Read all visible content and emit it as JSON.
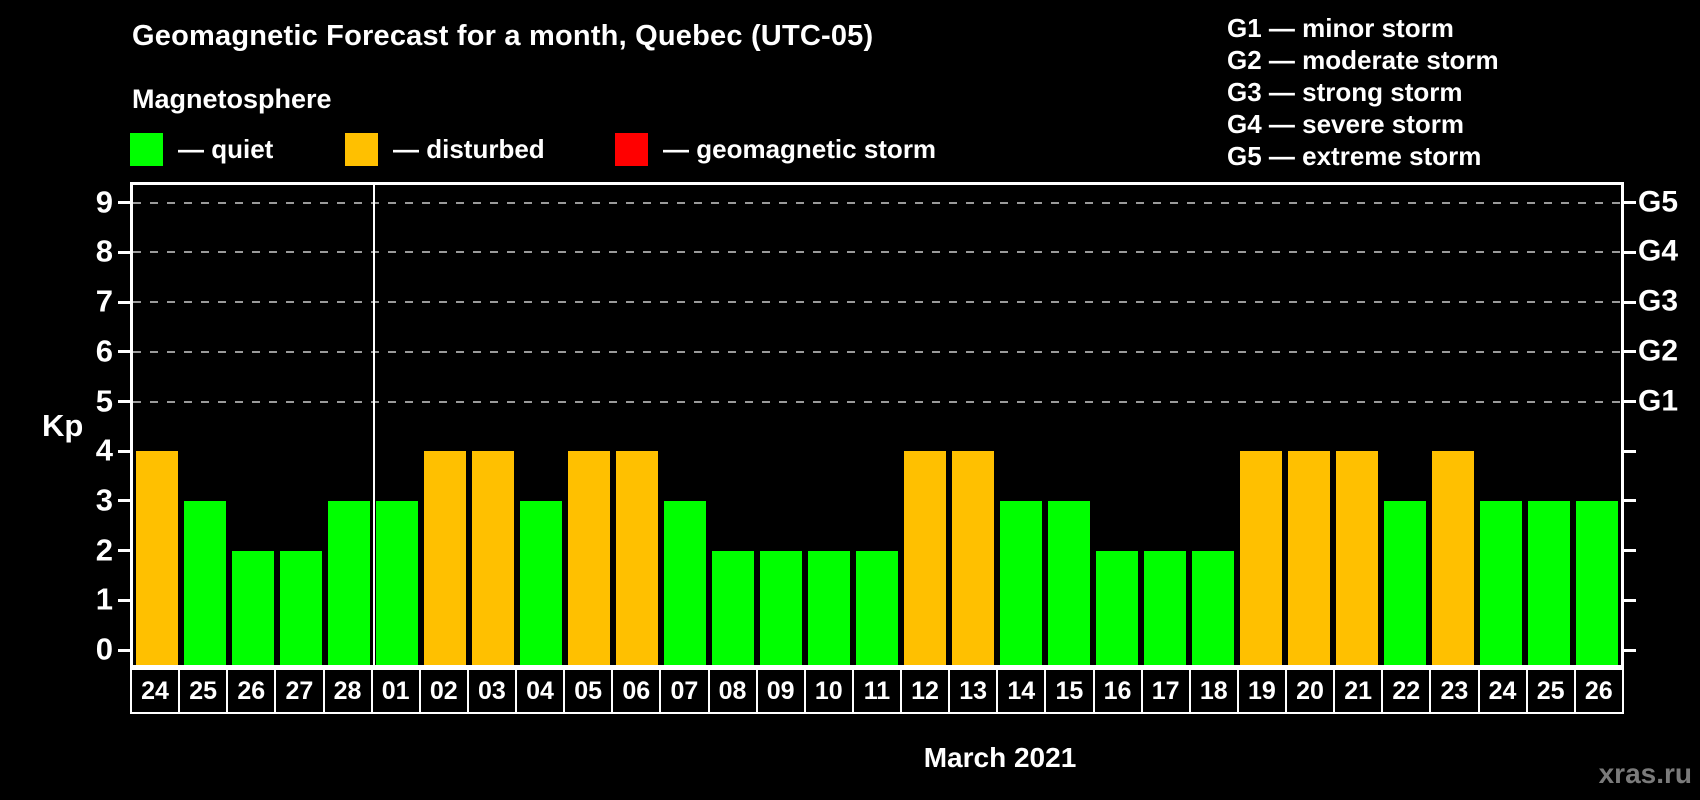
{
  "title": "Geomagnetic Forecast for a month, Quebec (UTC-05)",
  "subtitle": "Magnetosphere",
  "legend": {
    "items": [
      {
        "id": "quiet",
        "label": "— quiet",
        "color": "#00ff00"
      },
      {
        "id": "disturbed",
        "label": "— disturbed",
        "color": "#ffc000"
      },
      {
        "id": "storm",
        "label": "— geomagnetic storm",
        "color": "#ff0000"
      }
    ]
  },
  "g_scale_legend": [
    "G1 — minor storm",
    "G2 — moderate storm",
    "G3 — strong storm",
    "G4 — severe storm",
    "G5 — extreme storm"
  ],
  "y_axis": {
    "label": "Kp",
    "ticks": [
      0,
      1,
      2,
      3,
      4,
      5,
      6,
      7,
      8,
      9
    ]
  },
  "x_axis": {
    "label": "March 2021"
  },
  "watermark": "xras.ru",
  "chart_data": {
    "type": "bar",
    "title": "Geomagnetic Forecast for a month, Quebec (UTC-05)",
    "subtitle": "Magnetosphere",
    "categories": [
      "24",
      "25",
      "26",
      "27",
      "28",
      "01",
      "02",
      "03",
      "04",
      "05",
      "06",
      "07",
      "08",
      "09",
      "10",
      "11",
      "12",
      "13",
      "14",
      "15",
      "16",
      "17",
      "18",
      "19",
      "20",
      "21",
      "22",
      "23",
      "24",
      "25",
      "26"
    ],
    "values": [
      4,
      3,
      2,
      2,
      3,
      3,
      4,
      4,
      3,
      4,
      4,
      3,
      2,
      2,
      2,
      2,
      4,
      4,
      3,
      3,
      2,
      2,
      2,
      4,
      4,
      4,
      3,
      4,
      3,
      3,
      3
    ],
    "statuses": [
      "disturbed",
      "quiet",
      "quiet",
      "quiet",
      "quiet",
      "quiet",
      "disturbed",
      "disturbed",
      "quiet",
      "disturbed",
      "disturbed",
      "quiet",
      "quiet",
      "quiet",
      "quiet",
      "quiet",
      "disturbed",
      "disturbed",
      "quiet",
      "quiet",
      "quiet",
      "quiet",
      "quiet",
      "disturbed",
      "disturbed",
      "disturbed",
      "quiet",
      "disturbed",
      "quiet",
      "quiet",
      "quiet"
    ],
    "xlabel": "March 2021",
    "ylabel": "Kp",
    "ylim": [
      0,
      9
    ],
    "yticks": [
      0,
      1,
      2,
      3,
      4,
      5,
      6,
      7,
      8,
      9
    ],
    "right_axis_labels": [
      {
        "kp": 5,
        "label": "G1"
      },
      {
        "kp": 6,
        "label": "G2"
      },
      {
        "kp": 7,
        "label": "G3"
      },
      {
        "kp": 8,
        "label": "G4"
      },
      {
        "kp": 9,
        "label": "G5"
      }
    ],
    "gridlines_at": [
      5,
      6,
      7,
      8,
      9
    ],
    "grid": "dashed horizontal lines at storm levels only",
    "legend_position": "top-left",
    "month_boundary_after_index": 4,
    "colors": {
      "quiet": "#00ff00",
      "disturbed": "#ffc000",
      "storm": "#ff0000"
    }
  }
}
